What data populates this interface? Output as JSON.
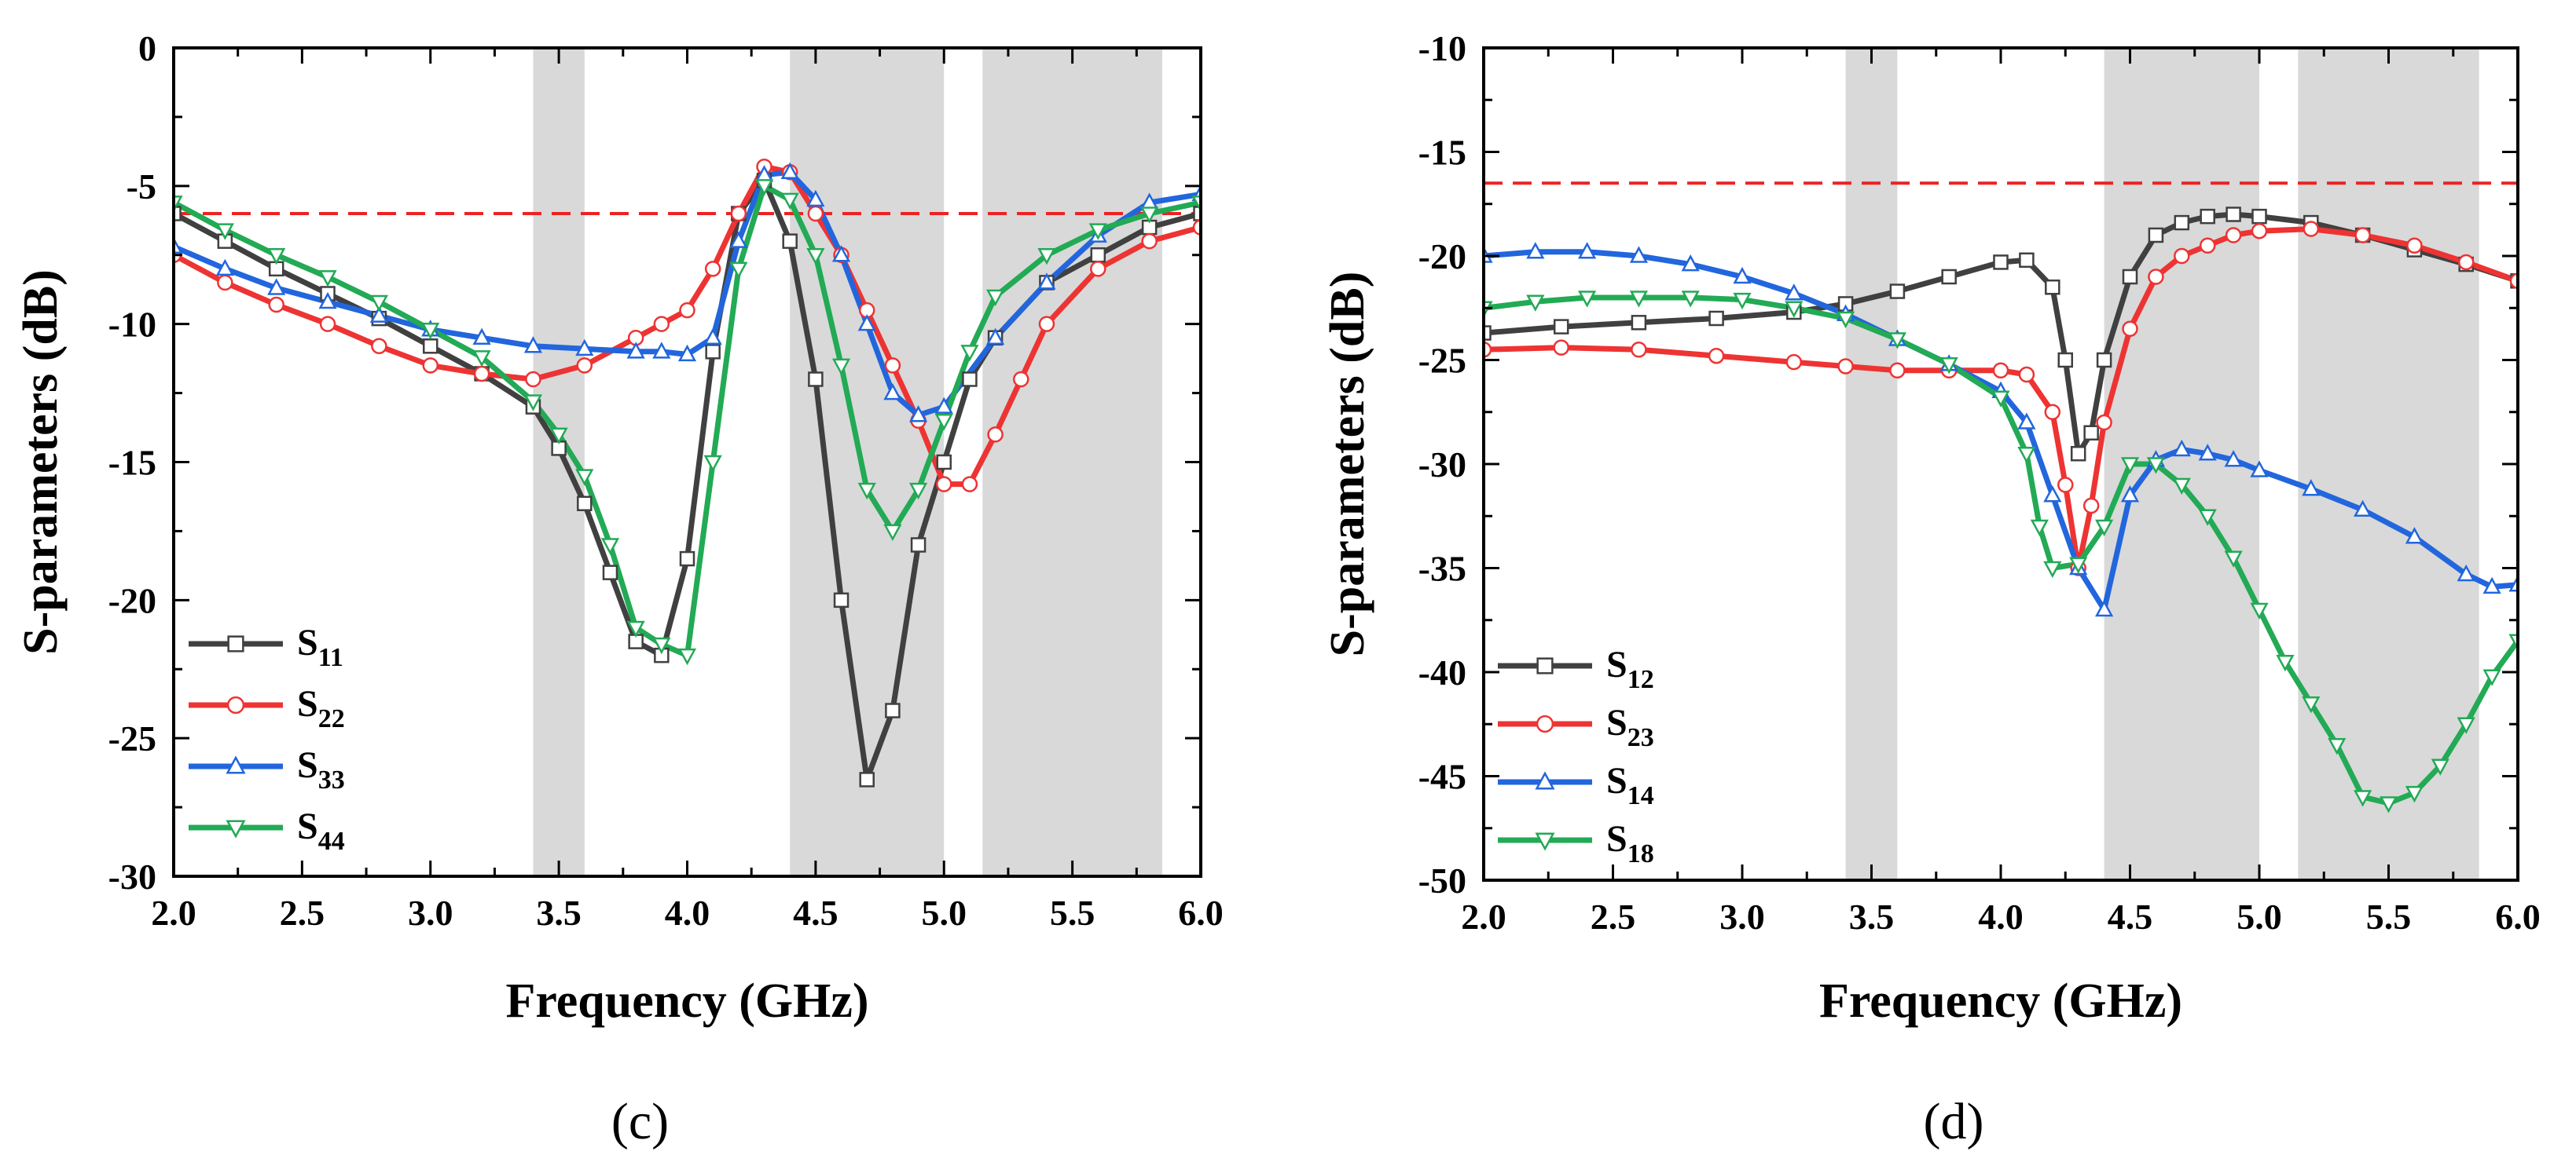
{
  "chart_data": [
    {
      "type": "line",
      "panel_label": "(c)",
      "xlabel": "Frequency (GHz)",
      "ylabel": "S-parameters (dB)",
      "xlim": [
        2.0,
        6.0
      ],
      "ylim": [
        -30,
        0
      ],
      "xticks": [
        "2.0",
        "2.5",
        "3.0",
        "3.5",
        "4.0",
        "4.5",
        "5.0",
        "5.5",
        "6.0"
      ],
      "xtick_values": [
        2.0,
        2.5,
        3.0,
        3.5,
        4.0,
        4.5,
        5.0,
        5.5,
        6.0
      ],
      "yticks": [
        "0",
        "-5",
        "-10",
        "-15",
        "-20",
        "-25",
        "-30"
      ],
      "ytick_values": [
        0,
        -5,
        -10,
        -15,
        -20,
        -25,
        -30
      ],
      "shaded_bands": [
        [
          3.4,
          3.6
        ],
        [
          4.4,
          5.0
        ],
        [
          5.15,
          5.85
        ]
      ],
      "reference_line": -6,
      "legend_position": "bottom-left",
      "series": [
        {
          "name": "S11",
          "base": "S",
          "sub": "11",
          "color": "#404040",
          "marker": "square",
          "x": [
            2.0,
            2.2,
            2.4,
            2.6,
            2.8,
            3.0,
            3.2,
            3.4,
            3.5,
            3.6,
            3.7,
            3.8,
            3.9,
            4.0,
            4.1,
            4.2,
            4.3,
            4.4,
            4.5,
            4.6,
            4.7,
            4.8,
            4.9,
            5.0,
            5.1,
            5.2,
            5.4,
            5.6,
            5.8,
            6.0
          ],
          "y": [
            -6.0,
            -7.0,
            -8.0,
            -8.9,
            -9.8,
            -10.8,
            -11.8,
            -13.0,
            -14.5,
            -16.5,
            -19.0,
            -21.5,
            -22.0,
            -18.5,
            -11.0,
            -6.0,
            -4.8,
            -7.0,
            -12.0,
            -20.0,
            -26.5,
            -24.0,
            -18.0,
            -15.0,
            -12.0,
            -10.5,
            -8.5,
            -7.5,
            -6.5,
            -6.0
          ]
        },
        {
          "name": "S22",
          "base": "S",
          "sub": "22",
          "color": "#ee3333",
          "marker": "circle",
          "x": [
            2.0,
            2.2,
            2.4,
            2.6,
            2.8,
            3.0,
            3.2,
            3.4,
            3.6,
            3.8,
            3.9,
            4.0,
            4.1,
            4.2,
            4.3,
            4.4,
            4.5,
            4.6,
            4.7,
            4.8,
            4.9,
            5.0,
            5.1,
            5.2,
            5.3,
            5.4,
            5.6,
            5.8,
            6.0
          ],
          "y": [
            -7.5,
            -8.5,
            -9.3,
            -10.0,
            -10.8,
            -11.5,
            -11.8,
            -12.0,
            -11.5,
            -10.5,
            -10.0,
            -9.5,
            -8.0,
            -6.0,
            -4.3,
            -4.5,
            -6.0,
            -7.5,
            -9.5,
            -11.5,
            -13.5,
            -15.8,
            -15.8,
            -14.0,
            -12.0,
            -10.0,
            -8.0,
            -7.0,
            -6.5
          ]
        },
        {
          "name": "S33",
          "base": "S",
          "sub": "33",
          "color": "#2266dd",
          "marker": "triangle-up",
          "x": [
            2.0,
            2.2,
            2.4,
            2.6,
            2.8,
            3.0,
            3.2,
            3.4,
            3.6,
            3.8,
            3.9,
            4.0,
            4.1,
            4.2,
            4.3,
            4.4,
            4.5,
            4.6,
            4.7,
            4.8,
            4.9,
            5.0,
            5.2,
            5.4,
            5.6,
            5.8,
            6.0
          ],
          "y": [
            -7.2,
            -8.0,
            -8.7,
            -9.2,
            -9.7,
            -10.2,
            -10.5,
            -10.8,
            -10.9,
            -11.0,
            -11.0,
            -11.1,
            -10.5,
            -7.0,
            -4.6,
            -4.5,
            -5.5,
            -7.5,
            -10.0,
            -12.5,
            -13.3,
            -13.0,
            -10.5,
            -8.5,
            -6.8,
            -5.6,
            -5.3
          ]
        },
        {
          "name": "S44",
          "base": "S",
          "sub": "44",
          "color": "#22aa55",
          "marker": "triangle-down",
          "x": [
            2.0,
            2.2,
            2.4,
            2.6,
            2.8,
            3.0,
            3.2,
            3.4,
            3.5,
            3.6,
            3.7,
            3.8,
            3.9,
            4.0,
            4.1,
            4.2,
            4.3,
            4.4,
            4.5,
            4.6,
            4.7,
            4.8,
            4.9,
            5.0,
            5.1,
            5.2,
            5.4,
            5.6,
            5.8,
            6.0
          ],
          "y": [
            -5.6,
            -6.6,
            -7.5,
            -8.3,
            -9.2,
            -10.2,
            -11.2,
            -12.8,
            -14.0,
            -15.5,
            -18.0,
            -21.0,
            -21.6,
            -22.0,
            -15.0,
            -8.0,
            -5.0,
            -5.5,
            -7.5,
            -11.5,
            -16.0,
            -17.5,
            -16.0,
            -13.5,
            -11.0,
            -9.0,
            -7.5,
            -6.6,
            -6.0,
            -5.6
          ]
        }
      ]
    },
    {
      "type": "line",
      "panel_label": "(d)",
      "xlabel": "Frequency (GHz)",
      "ylabel": "S-parameters (dB)",
      "xlim": [
        2.0,
        6.0
      ],
      "ylim": [
        -50,
        -10
      ],
      "xticks": [
        "2.0",
        "2.5",
        "3.0",
        "3.5",
        "4.0",
        "4.5",
        "5.0",
        "5.5",
        "6.0"
      ],
      "xtick_values": [
        2.0,
        2.5,
        3.0,
        3.5,
        4.0,
        4.5,
        5.0,
        5.5,
        6.0
      ],
      "yticks": [
        "-10",
        "-15",
        "-20",
        "-25",
        "-30",
        "-35",
        "-40",
        "-45",
        "-50"
      ],
      "ytick_values": [
        -10,
        -15,
        -20,
        -25,
        -30,
        -35,
        -40,
        -45,
        -50
      ],
      "shaded_bands": [
        [
          3.4,
          3.6
        ],
        [
          4.4,
          5.0
        ],
        [
          5.15,
          5.85
        ]
      ],
      "reference_line": -16.5,
      "legend_position": "bottom-left",
      "series": [
        {
          "name": "S12",
          "base": "S",
          "sub": "12",
          "color": "#404040",
          "marker": "square",
          "x": [
            2.0,
            2.3,
            2.6,
            2.9,
            3.2,
            3.4,
            3.6,
            3.8,
            4.0,
            4.1,
            4.2,
            4.25,
            4.3,
            4.35,
            4.4,
            4.5,
            4.6,
            4.7,
            4.8,
            4.9,
            5.0,
            5.2,
            5.4,
            5.6,
            5.8,
            6.0
          ],
          "y": [
            -23.7,
            -23.4,
            -23.2,
            -23.0,
            -22.7,
            -22.3,
            -21.7,
            -21.0,
            -20.3,
            -20.2,
            -21.5,
            -25.0,
            -29.5,
            -28.5,
            -25.0,
            -21.0,
            -19.0,
            -18.4,
            -18.1,
            -18.0,
            -18.1,
            -18.4,
            -19.0,
            -19.7,
            -20.4,
            -21.2
          ]
        },
        {
          "name": "S23",
          "base": "S",
          "sub": "23",
          "color": "#ee3333",
          "marker": "circle",
          "x": [
            2.0,
            2.3,
            2.6,
            2.9,
            3.2,
            3.4,
            3.6,
            3.8,
            4.0,
            4.1,
            4.2,
            4.25,
            4.3,
            4.35,
            4.4,
            4.5,
            4.6,
            4.7,
            4.8,
            4.9,
            5.0,
            5.2,
            5.4,
            5.6,
            5.8,
            6.0
          ],
          "y": [
            -24.5,
            -24.4,
            -24.5,
            -24.8,
            -25.1,
            -25.3,
            -25.5,
            -25.5,
            -25.5,
            -25.7,
            -27.5,
            -31.0,
            -35.0,
            -32.0,
            -28.0,
            -23.5,
            -21.0,
            -20.0,
            -19.5,
            -19.0,
            -18.8,
            -18.7,
            -19.0,
            -19.5,
            -20.3,
            -21.2
          ]
        },
        {
          "name": "S14",
          "base": "S",
          "sub": "14",
          "color": "#2266dd",
          "marker": "triangle-up",
          "x": [
            2.0,
            2.2,
            2.4,
            2.6,
            2.8,
            3.0,
            3.2,
            3.4,
            3.6,
            3.8,
            4.0,
            4.1,
            4.2,
            4.3,
            4.4,
            4.5,
            4.6,
            4.7,
            4.8,
            4.9,
            5.0,
            5.2,
            5.4,
            5.6,
            5.8,
            5.9,
            6.0
          ],
          "y": [
            -20.0,
            -19.8,
            -19.8,
            -20.0,
            -20.4,
            -21.0,
            -21.8,
            -22.8,
            -24.0,
            -25.2,
            -26.5,
            -28.0,
            -31.5,
            -35.0,
            -37.0,
            -31.5,
            -29.8,
            -29.3,
            -29.5,
            -29.8,
            -30.3,
            -31.2,
            -32.2,
            -33.5,
            -35.3,
            -35.9,
            -35.8
          ]
        },
        {
          "name": "S18",
          "base": "S",
          "sub": "18",
          "color": "#22aa55",
          "marker": "triangle-down",
          "x": [
            2.0,
            2.2,
            2.4,
            2.6,
            2.8,
            3.0,
            3.2,
            3.4,
            3.6,
            3.8,
            4.0,
            4.1,
            4.15,
            4.2,
            4.3,
            4.4,
            4.5,
            4.6,
            4.7,
            4.8,
            4.9,
            5.0,
            5.1,
            5.2,
            5.3,
            5.4,
            5.5,
            5.6,
            5.7,
            5.8,
            5.9,
            6.0
          ],
          "y": [
            -22.5,
            -22.2,
            -22.0,
            -22.0,
            -22.0,
            -22.1,
            -22.5,
            -23.0,
            -24.0,
            -25.2,
            -26.8,
            -29.5,
            -33.0,
            -35.0,
            -34.8,
            -33.0,
            -30.0,
            -30.0,
            -31.0,
            -32.5,
            -34.5,
            -37.0,
            -39.5,
            -41.5,
            -43.5,
            -46.0,
            -46.3,
            -45.8,
            -44.5,
            -42.5,
            -40.2,
            -38.5
          ]
        }
      ]
    }
  ]
}
